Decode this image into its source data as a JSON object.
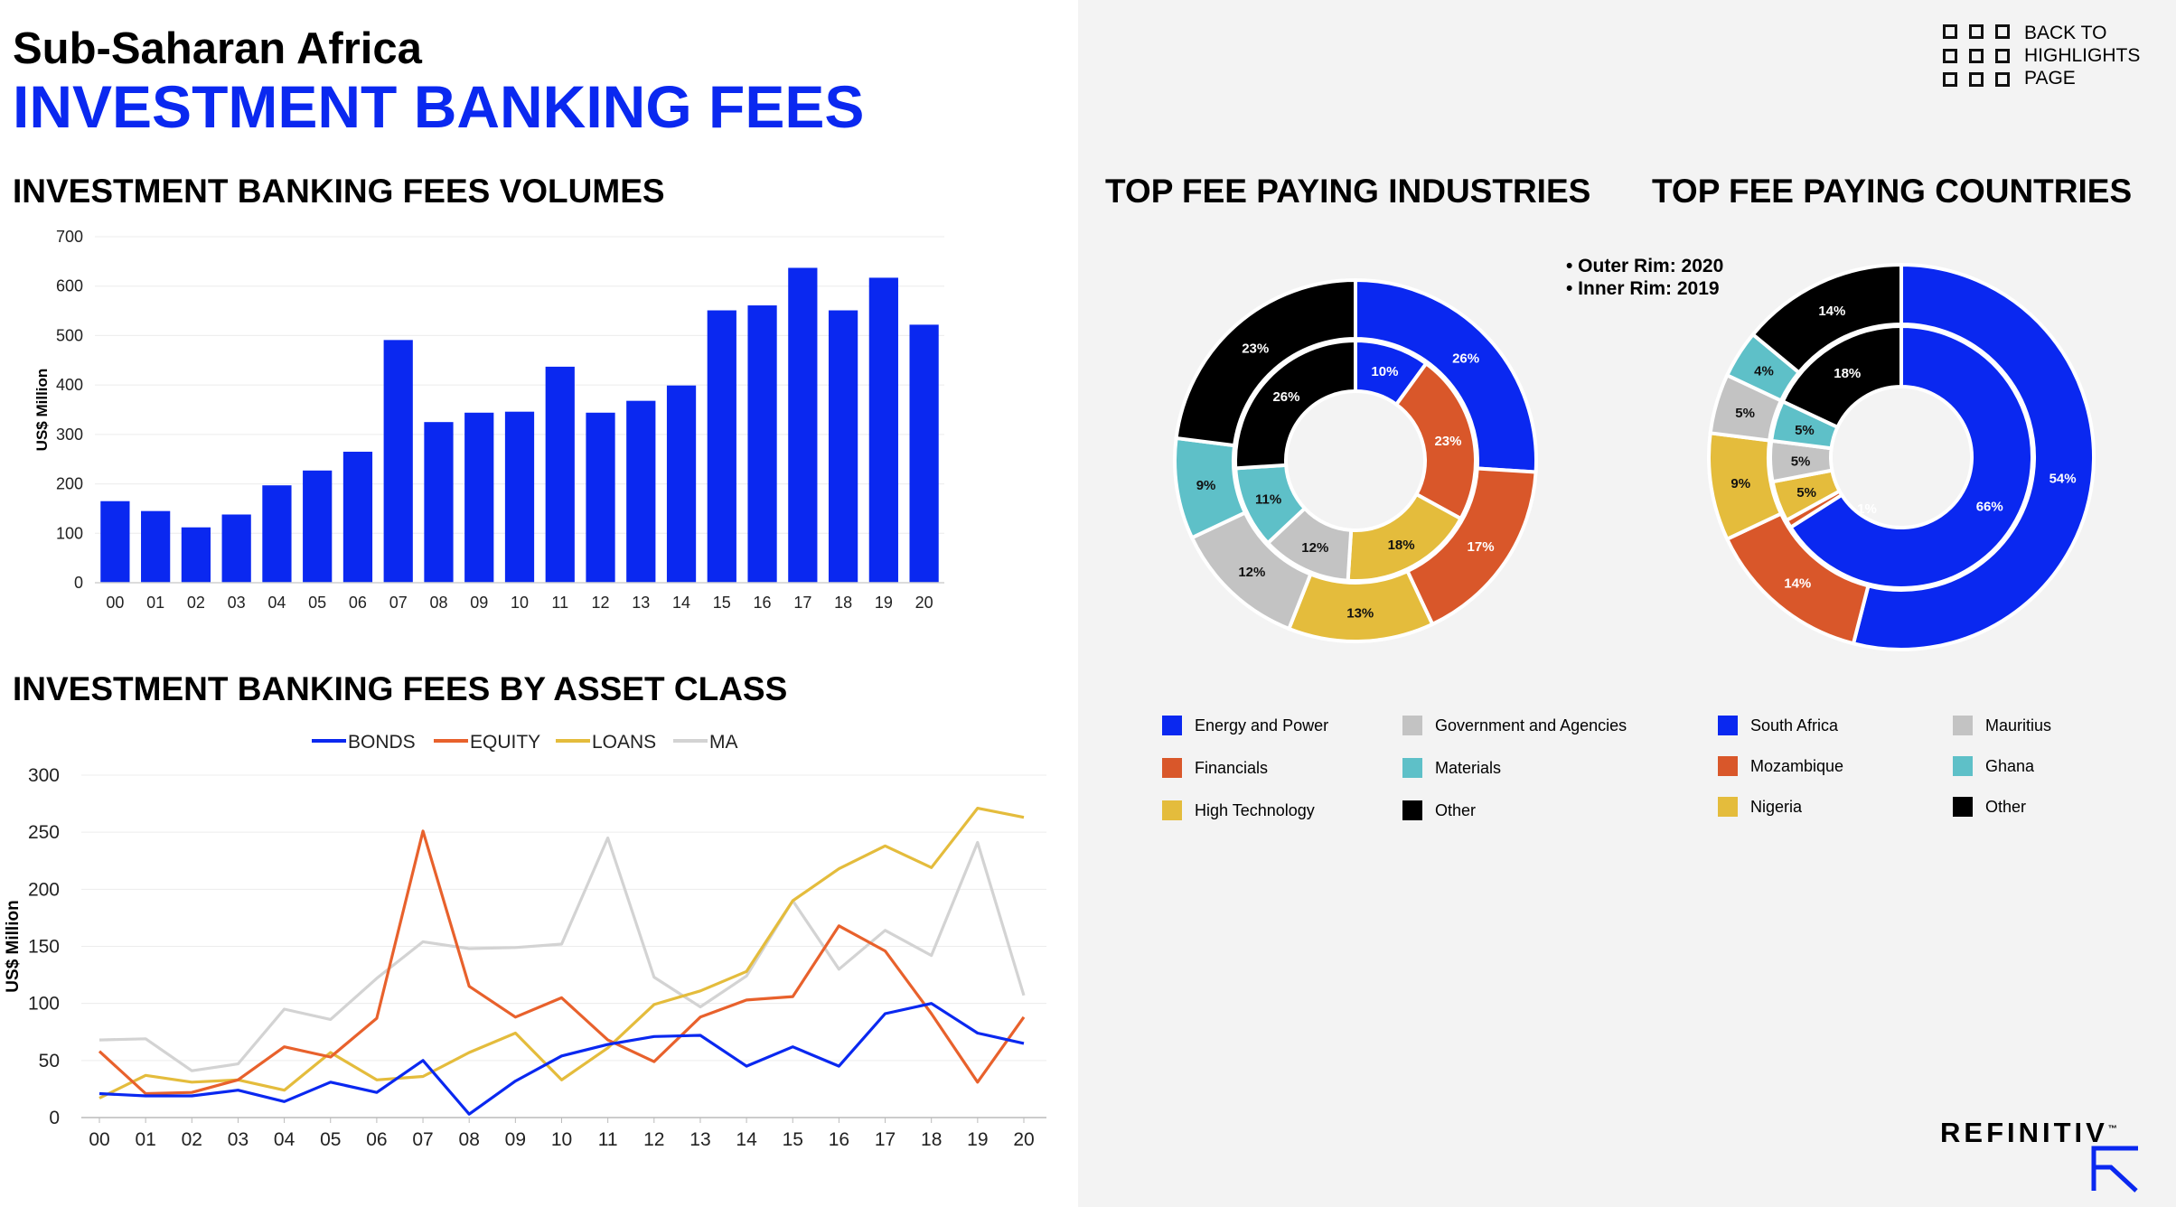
{
  "header": {
    "region": "Sub-Saharan Africa",
    "title": "INVESTMENT BANKING FEES"
  },
  "nav": {
    "back_line1": "BACK TO",
    "back_line2": "HIGHLIGHTS",
    "back_line3": "PAGE"
  },
  "sections": {
    "volumes": "INVESTMENT BANKING FEES VOLUMES",
    "asset_class": "INVESTMENT BANKING FEES BY ASSET CLASS",
    "industries": "TOP FEE PAYING INDUSTRIES",
    "countries": "TOP FEE PAYING COUNTRIES"
  },
  "donut_note": {
    "outer": "• Outer Rim: 2020",
    "inner": "• Inner Rim: 2019"
  },
  "brand": {
    "name": "REFINITIV",
    "tm": "™"
  },
  "colors": {
    "blue": "#0A28F0",
    "orange": "#D9572A",
    "yellow": "#E4BC3C",
    "gray": "#C3C3C3",
    "teal": "#5EC0C8",
    "black": "#000000",
    "panel_bg": "#F3F3F3"
  },
  "chart_data": [
    {
      "type": "bar",
      "ylabel": "US$ Million",
      "ylim": [
        0,
        700
      ],
      "yticks": [
        0,
        100,
        200,
        300,
        400,
        500,
        600,
        700
      ],
      "categories": [
        "00",
        "01",
        "02",
        "03",
        "04",
        "05",
        "06",
        "07",
        "08",
        "09",
        "10",
        "11",
        "12",
        "13",
        "14",
        "15",
        "16",
        "17",
        "18",
        "19",
        "20"
      ],
      "values": [
        165,
        145,
        112,
        138,
        197,
        227,
        265,
        491,
        325,
        344,
        346,
        437,
        344,
        368,
        399,
        551,
        561,
        637,
        551,
        617,
        522
      ],
      "color": "#0A28F0"
    },
    {
      "type": "line",
      "ylabel": "US$ Million",
      "ylim": [
        0,
        300
      ],
      "yticks": [
        0,
        50,
        100,
        150,
        200,
        250,
        300
      ],
      "legend_position": "top",
      "categories": [
        "00",
        "01",
        "02",
        "03",
        "04",
        "05",
        "06",
        "07",
        "08",
        "09",
        "10",
        "11",
        "12",
        "13",
        "14",
        "15",
        "16",
        "17",
        "18",
        "19",
        "20"
      ],
      "series": [
        {
          "name": "BONDS",
          "color": "#0A28F0",
          "values": [
            21,
            19,
            19,
            24,
            14,
            31,
            22,
            50,
            3,
            32,
            54,
            64,
            71,
            72,
            45,
            62,
            45,
            91,
            100,
            74,
            65
          ]
        },
        {
          "name": "EQUITY",
          "color": "#E8612C",
          "values": [
            58,
            21,
            22,
            33,
            62,
            53,
            87,
            251,
            115,
            88,
            105,
            68,
            49,
            88,
            103,
            106,
            168,
            146,
            91,
            31,
            88
          ]
        },
        {
          "name": "LOANS",
          "color": "#E4BC3C",
          "values": [
            17,
            37,
            31,
            33,
            24,
            57,
            33,
            36,
            57,
            74,
            33,
            61,
            99,
            111,
            128,
            190,
            218,
            238,
            219,
            271,
            263
          ]
        },
        {
          "name": "MA",
          "color": "#D3D3D3",
          "values": [
            68,
            69,
            41,
            47,
            95,
            86,
            122,
            154,
            148,
            149,
            152,
            245,
            123,
            97,
            124,
            190,
            130,
            164,
            142,
            241,
            107
          ]
        }
      ]
    },
    {
      "type": "pie",
      "subtype": "donut",
      "rings": [
        "2020 (outer)",
        "2019 (inner)"
      ],
      "categories": [
        "Energy and Power",
        "Financials",
        "High Technology",
        "Government and Agencies",
        "Materials",
        "Other"
      ],
      "colors": [
        "#0A28F0",
        "#D9572A",
        "#E4BC3C",
        "#C3C3C3",
        "#5EC0C8",
        "#000000"
      ],
      "series": [
        {
          "values": [
            26,
            17,
            13,
            12,
            9,
            23
          ],
          "labels": [
            "26%",
            "17%",
            "13%",
            "12%",
            "9%",
            "23%"
          ]
        },
        {
          "values": [
            10,
            23,
            18,
            12,
            11,
            26
          ],
          "labels": [
            "10%",
            "23%",
            "18%",
            "12%",
            "11%",
            "26%"
          ]
        }
      ]
    },
    {
      "type": "pie",
      "subtype": "donut",
      "rings": [
        "2020 (outer)",
        "2019 (inner)"
      ],
      "categories": [
        "South Africa",
        "Mozambique",
        "Nigeria",
        "Mauritius",
        "Ghana",
        "Other"
      ],
      "colors": [
        "#0A28F0",
        "#D9572A",
        "#E4BC3C",
        "#C3C3C3",
        "#5EC0C8",
        "#000000"
      ],
      "series": [
        {
          "values": [
            54,
            14,
            9,
            5,
            4,
            14
          ],
          "labels": [
            "54%",
            "14%",
            "9%",
            "5%",
            "4%",
            "14%"
          ]
        },
        {
          "values": [
            66,
            1,
            5,
            5,
            5,
            18
          ],
          "labels": [
            "66%",
            "1%",
            "5%",
            "5%",
            "5%",
            "18%"
          ]
        }
      ]
    }
  ]
}
